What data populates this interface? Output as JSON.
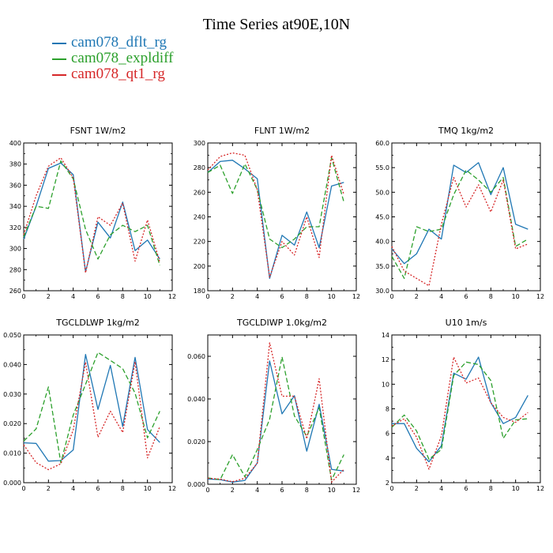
{
  "title": "Time Series at90E,10N",
  "legend": [
    {
      "name": "cam078_dflt_rg",
      "color": "#1f77b4"
    },
    {
      "name": "cam078_expldiff",
      "color": "#2ca02c"
    },
    {
      "name": "cam078_qt1_rg",
      "color": "#d62728"
    }
  ],
  "chart_data": [
    {
      "type": "line",
      "title": "FSNT   1W/m2",
      "x": [
        0,
        1,
        2,
        3,
        4,
        5,
        6,
        7,
        8,
        9,
        10,
        11
      ],
      "xlim": [
        0,
        12
      ],
      "xticks": [
        "0",
        "2",
        "4",
        "6",
        "8",
        "10",
        "12"
      ],
      "ylim": [
        260,
        400
      ],
      "yticks": [
        "260",
        "280",
        "300",
        "320",
        "340",
        "360",
        "380",
        "400"
      ],
      "series": [
        {
          "name": "cam078_dflt_rg",
          "values": [
            309,
            340,
            376,
            381,
            370,
            278,
            325,
            310,
            344,
            298,
            308,
            290
          ]
        },
        {
          "name": "cam078_expldiff",
          "values": [
            311,
            340,
            338,
            383,
            366,
            318,
            290,
            313,
            322,
            316,
            322,
            284
          ]
        },
        {
          "name": "cam078_qt1_rg",
          "values": [
            313,
            350,
            378,
            386,
            367,
            277,
            330,
            322,
            343,
            288,
            327,
            287
          ]
        }
      ]
    },
    {
      "type": "line",
      "title": "FLNT   1W/m2",
      "x": [
        0,
        1,
        2,
        3,
        4,
        5,
        6,
        7,
        8,
        9,
        10,
        11
      ],
      "xlim": [
        0,
        12
      ],
      "xticks": [
        "0",
        "2",
        "4",
        "6",
        "8",
        "10",
        "12"
      ],
      "ylim": [
        180,
        300
      ],
      "yticks": [
        "180",
        "200",
        "220",
        "240",
        "260",
        "280",
        "300"
      ],
      "series": [
        {
          "name": "cam078_dflt_rg",
          "values": [
            276,
            285,
            286,
            279,
            271,
            190,
            225,
            217,
            244,
            215,
            265,
            268
          ]
        },
        {
          "name": "cam078_expldiff",
          "values": [
            276,
            282,
            259,
            283,
            262,
            222,
            215,
            222,
            232,
            232,
            288,
            252
          ]
        },
        {
          "name": "cam078_qt1_rg",
          "values": [
            278,
            289,
            292,
            290,
            262,
            191,
            220,
            209,
            240,
            207,
            290,
            258
          ]
        }
      ]
    },
    {
      "type": "line",
      "title": "TMQ   1kg/m2",
      "x": [
        0,
        1,
        2,
        3,
        4,
        5,
        6,
        7,
        8,
        9,
        10,
        11
      ],
      "xlim": [
        0,
        12
      ],
      "xticks": [
        "0",
        "2",
        "4",
        "6",
        "8",
        "10",
        "12"
      ],
      "ylim": [
        30,
        60
      ],
      "yticks": [
        "30.0",
        "35.0",
        "40.0",
        "45.0",
        "50.0",
        "55.0",
        "60.0"
      ],
      "series": [
        {
          "name": "cam078_dflt_rg",
          "values": [
            38.5,
            35.5,
            37.5,
            42.5,
            40.5,
            55.5,
            54.0,
            56.0,
            49.5,
            55.0,
            43.5,
            42.5
          ]
        },
        {
          "name": "cam078_expldiff",
          "values": [
            37.0,
            32.5,
            43.0,
            42.0,
            42.5,
            49.5,
            54.5,
            52.5,
            50.0,
            53.0,
            39.0,
            40.5
          ]
        },
        {
          "name": "cam078_qt1_rg",
          "values": [
            39.0,
            34.0,
            32.5,
            31.0,
            43.5,
            53.0,
            47.0,
            51.5,
            46.0,
            52.5,
            38.5,
            39.5
          ]
        }
      ]
    },
    {
      "type": "line",
      "title": "TGCLDLWP   1kg/m2",
      "x": [
        0,
        1,
        2,
        3,
        4,
        5,
        6,
        7,
        8,
        9,
        10,
        11
      ],
      "xlim": [
        0,
        12
      ],
      "xticks": [
        "0",
        "2",
        "4",
        "6",
        "8",
        "10",
        "12"
      ],
      "ylim": [
        0,
        0.05
      ],
      "yticks": [
        "0.000",
        "0.010",
        "0.020",
        "0.030",
        "0.040",
        "0.050"
      ],
      "series": [
        {
          "name": "cam078_dflt_rg",
          "values": [
            0.0135,
            0.0133,
            0.0073,
            0.0075,
            0.0111,
            0.0434,
            0.0248,
            0.0397,
            0.019,
            0.0424,
            0.018,
            0.0136
          ]
        },
        {
          "name": "cam078_expldiff",
          "values": [
            0.0141,
            0.0182,
            0.0324,
            0.0067,
            0.0229,
            0.0333,
            0.0441,
            0.0414,
            0.0386,
            0.0303,
            0.0152,
            0.0242
          ]
        },
        {
          "name": "cam078_qt1_rg",
          "values": [
            0.0128,
            0.0068,
            0.0044,
            0.0064,
            0.0179,
            0.0408,
            0.0154,
            0.0242,
            0.017,
            0.0409,
            0.0084,
            0.019
          ]
        }
      ]
    },
    {
      "type": "line",
      "title": "TGCLDIWP   1.0kg/m2",
      "x": [
        0,
        1,
        2,
        3,
        4,
        5,
        6,
        7,
        8,
        9,
        10,
        11
      ],
      "xlim": [
        0,
        12
      ],
      "xticks": [
        "0",
        "2",
        "4",
        "6",
        "8",
        "10",
        "12"
      ],
      "ylim": [
        0,
        0.07
      ],
      "yticks": [
        "0.000",
        "0.020",
        "0.040",
        "0.060"
      ],
      "series": [
        {
          "name": "cam078_dflt_rg",
          "values": [
            0.0025,
            0.0022,
            0.001,
            0.0018,
            0.01,
            0.0578,
            0.033,
            0.0415,
            0.0155,
            0.0375,
            0.007,
            0.0062
          ]
        },
        {
          "name": "cam078_expldiff",
          "values": [
            0.003,
            0.0022,
            0.0139,
            0.0035,
            0.0163,
            0.0305,
            0.0597,
            0.032,
            0.0225,
            0.0359,
            0.002,
            0.0139
          ]
        },
        {
          "name": "cam078_qt1_rg",
          "values": [
            0.0028,
            0.0024,
            0.0012,
            0.0028,
            0.0099,
            0.0663,
            0.0413,
            0.0413,
            0.0213,
            0.0495,
            0.001,
            0.007
          ]
        }
      ]
    },
    {
      "type": "line",
      "title": "U10   1m/s",
      "x": [
        0,
        1,
        2,
        3,
        4,
        5,
        6,
        7,
        8,
        9,
        10,
        11
      ],
      "xlim": [
        0,
        12
      ],
      "xticks": [
        "0",
        "2",
        "4",
        "6",
        "8",
        "10",
        "12"
      ],
      "ylim": [
        2,
        14
      ],
      "yticks": [
        "2",
        "4",
        "6",
        "8",
        "10",
        "12",
        "14"
      ],
      "series": [
        {
          "name": "cam078_dflt_rg",
          "values": [
            6.8,
            6.8,
            4.8,
            3.7,
            5.0,
            10.9,
            10.4,
            12.2,
            8.5,
            6.8,
            7.3,
            9.1
          ]
        },
        {
          "name": "cam078_expldiff",
          "values": [
            6.5,
            7.5,
            6.2,
            3.9,
            4.7,
            10.7,
            11.8,
            11.6,
            10.3,
            5.6,
            7.1,
            7.2
          ]
        },
        {
          "name": "cam078_qt1_rg",
          "values": [
            6.6,
            7.2,
            5.7,
            3.1,
            5.8,
            12.2,
            10.1,
            10.5,
            8.5,
            7.3,
            6.9,
            7.7
          ]
        }
      ]
    }
  ]
}
